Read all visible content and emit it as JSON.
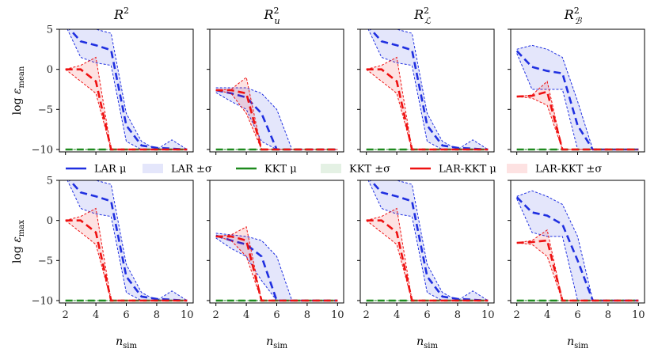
{
  "figure": {
    "legend": [
      {
        "label": "LAR μ",
        "kind": "line",
        "color": "#1f2fe0"
      },
      {
        "label": "LAR ±σ",
        "kind": "band",
        "color": "#1f2fe0"
      },
      {
        "label": "KKT μ",
        "kind": "line",
        "color": "#1e8a1e"
      },
      {
        "label": "KKT ±σ",
        "kind": "band",
        "color": "#1e8a1e"
      },
      {
        "label": "LAR-KKT μ",
        "kind": "line",
        "color": "#ee1111"
      },
      {
        "label": "LAR-KKT ±σ",
        "kind": "band",
        "color": "#ee1111"
      }
    ],
    "column_titles": [
      "R²",
      "R²_u",
      "R²_ℒ",
      "R²_ℬ"
    ],
    "row_ylabels": [
      "log ε_mean",
      "log ε_max"
    ],
    "xlabel": "n_sim"
  },
  "chart_data": {
    "type": "line",
    "layout": "2x4 grid of subplots sharing x and y axes",
    "x": [
      2,
      3,
      4,
      5,
      6,
      7,
      8,
      9,
      10
    ],
    "xticks": [
      2,
      4,
      6,
      8,
      10
    ],
    "yticks": [
      5,
      0,
      -5,
      -10
    ],
    "ylim": [
      -10.3,
      5
    ],
    "colors": {
      "LAR": "#1f2fe0",
      "KKT": "#1e8a1e",
      "LAR-KKT": "#ee1111"
    },
    "panels": [
      {
        "row": 0,
        "col": 0,
        "series": {
          "LAR": {
            "mean": [
              5.6,
              3.5,
              3.0,
              2.4,
              -7.0,
              -9.5,
              -9.8,
              -9.9,
              -10.0
            ],
            "upper": [
              5.5,
              5.2,
              5.0,
              4.5,
              -5.5,
              -9.0,
              -10.0,
              -8.8,
              -10.0
            ],
            "lower": [
              5.5,
              1.5,
              0.8,
              0.5,
              -9.0,
              -10.0,
              -10.0,
              -10.0,
              -10.0
            ]
          },
          "KKT": {
            "mean": [
              -10,
              -10,
              -10,
              -10,
              -10,
              -10,
              -10,
              -10,
              -10
            ],
            "upper": [
              -10,
              -10,
              -10,
              -10,
              -10,
              -10,
              -10,
              -10,
              -10
            ],
            "lower": [
              -10,
              -10,
              -10,
              -10,
              -10,
              -10,
              -10,
              -10,
              -10
            ]
          },
          "LAR-KKT": {
            "mean": [
              0.0,
              0.0,
              -1.5,
              -10.0,
              -10.0,
              -10.0,
              -10.0,
              -10.0,
              -10.0
            ],
            "upper": [
              0.0,
              0.5,
              1.5,
              -10.0,
              -10.0,
              -10.0,
              -10.0,
              -10.0,
              -10.0
            ],
            "lower": [
              0.0,
              -1.5,
              -3.0,
              -10.0,
              -10.0,
              -10.0,
              -10.0,
              -10.0,
              -10.0
            ]
          }
        }
      },
      {
        "row": 0,
        "col": 1,
        "series": {
          "LAR": {
            "mean": [
              -2.6,
              -3.0,
              -3.5,
              -5.5,
              -10.0,
              -10.0,
              -10.0,
              -10.0,
              -10.0
            ],
            "upper": [
              -2.3,
              -2.3,
              -2.3,
              -3.0,
              -5.0,
              -10.0,
              -10.0,
              -10.0,
              -10.0
            ],
            "lower": [
              -2.9,
              -4.0,
              -5.0,
              -9.0,
              -10.0,
              -10.0,
              -10.0,
              -10.0,
              -10.0
            ]
          },
          "KKT": {
            "mean": [
              -10,
              -10,
              -10,
              -10,
              -10,
              -10,
              -10,
              -10,
              -10
            ],
            "upper": [
              -10,
              -10,
              -10,
              -10,
              -10,
              -10,
              -10,
              -10,
              -10
            ],
            "lower": [
              -10,
              -10,
              -10,
              -10,
              -10,
              -10,
              -10,
              -10,
              -10
            ]
          },
          "LAR-KKT": {
            "mean": [
              -2.6,
              -2.6,
              -3.0,
              -10.0,
              -10.0,
              -10.0,
              -10.0,
              -10.0,
              -10.0
            ],
            "upper": [
              -2.6,
              -2.5,
              -1.0,
              -10.0,
              -10.0,
              -10.0,
              -10.0,
              -10.0,
              -10.0
            ],
            "lower": [
              -2.6,
              -3.0,
              -5.5,
              -10.0,
              -10.0,
              -10.0,
              -10.0,
              -10.0,
              -10.0
            ]
          }
        }
      },
      {
        "row": 0,
        "col": 2,
        "series": {
          "LAR": {
            "mean": [
              5.6,
              3.5,
              3.0,
              2.4,
              -7.0,
              -9.5,
              -9.8,
              -9.9,
              -10.0
            ],
            "upper": [
              5.5,
              5.2,
              5.0,
              4.5,
              -5.5,
              -9.0,
              -10.0,
              -8.8,
              -10.0
            ],
            "lower": [
              5.5,
              1.5,
              0.8,
              0.5,
              -9.0,
              -10.0,
              -10.0,
              -10.0,
              -10.0
            ]
          },
          "KKT": {
            "mean": [
              -10,
              -10,
              -10,
              -10,
              -10,
              -10,
              -10,
              -10,
              -10
            ],
            "upper": [
              -10,
              -10,
              -10,
              -10,
              -10,
              -10,
              -10,
              -10,
              -10
            ],
            "lower": [
              -10,
              -10,
              -10,
              -10,
              -10,
              -10,
              -10,
              -10,
              -10
            ]
          },
          "LAR-KKT": {
            "mean": [
              0.0,
              0.0,
              -1.5,
              -10.0,
              -10.0,
              -10.0,
              -10.0,
              -10.0,
              -10.0
            ],
            "upper": [
              0.0,
              0.5,
              1.5,
              -10.0,
              -10.0,
              -10.0,
              -10.0,
              -10.0,
              -10.0
            ],
            "lower": [
              0.0,
              -1.5,
              -3.0,
              -10.0,
              -10.0,
              -10.0,
              -10.0,
              -10.0,
              -10.0
            ]
          }
        }
      },
      {
        "row": 0,
        "col": 3,
        "series": {
          "LAR": {
            "mean": [
              2.3,
              0.3,
              -0.2,
              -0.5,
              -7.0,
              -10.0,
              -10.0,
              -10.0,
              -10.0
            ],
            "upper": [
              2.5,
              3.0,
              2.5,
              1.5,
              -4.0,
              -10.0,
              -10.0,
              -10.0,
              -10.0
            ],
            "lower": [
              2.0,
              -2.5,
              -2.5,
              -2.5,
              -10.0,
              -10.0,
              -10.0,
              -10.0,
              -10.0
            ]
          },
          "KKT": {
            "mean": [
              -10,
              -10,
              -10,
              -10,
              -10,
              -10,
              -10,
              -10,
              -10
            ],
            "upper": [
              -10,
              -10,
              -10,
              -10,
              -10,
              -10,
              -10,
              -10,
              -10
            ],
            "lower": [
              -10,
              -10,
              -10,
              -10,
              -10,
              -10,
              -10,
              -10,
              -10
            ]
          },
          "LAR-KKT": {
            "mean": [
              -3.4,
              -3.3,
              -2.8,
              -10.0,
              -10.0,
              -10.0,
              -10.0,
              -10.0,
              -10.0
            ],
            "upper": [
              -3.4,
              -3.2,
              -1.5,
              -10.0,
              -10.0,
              -10.0,
              -10.0,
              -10.0,
              -10.0
            ],
            "lower": [
              -3.4,
              -3.6,
              -4.5,
              -10.0,
              -10.0,
              -10.0,
              -10.0,
              -10.0,
              -10.0
            ]
          }
        }
      },
      {
        "row": 1,
        "col": 0,
        "series": {
          "LAR": {
            "mean": [
              5.6,
              3.5,
              3.0,
              2.4,
              -7.0,
              -9.5,
              -9.8,
              -9.9,
              -10.0
            ],
            "upper": [
              5.5,
              5.2,
              5.0,
              4.5,
              -5.5,
              -9.0,
              -10.0,
              -8.8,
              -10.0
            ],
            "lower": [
              5.5,
              1.5,
              0.8,
              0.5,
              -9.0,
              -10.0,
              -10.0,
              -10.0,
              -10.0
            ]
          },
          "KKT": {
            "mean": [
              -10,
              -10,
              -10,
              -10,
              -10,
              -10,
              -10,
              -10,
              -10
            ],
            "upper": [
              -10,
              -10,
              -10,
              -10,
              -10,
              -10,
              -10,
              -10,
              -10
            ],
            "lower": [
              -10,
              -10,
              -10,
              -10,
              -10,
              -10,
              -10,
              -10,
              -10
            ]
          },
          "LAR-KKT": {
            "mean": [
              0.0,
              0.0,
              -1.5,
              -10.0,
              -10.0,
              -10.0,
              -10.0,
              -10.0,
              -10.0
            ],
            "upper": [
              0.0,
              0.5,
              1.5,
              -10.0,
              -10.0,
              -10.0,
              -10.0,
              -10.0,
              -10.0
            ],
            "lower": [
              0.0,
              -1.5,
              -3.0,
              -10.0,
              -10.0,
              -10.0,
              -10.0,
              -10.0,
              -10.0
            ]
          }
        }
      },
      {
        "row": 1,
        "col": 1,
        "series": {
          "LAR": {
            "mean": [
              -1.9,
              -2.5,
              -3.0,
              -4.5,
              -10.0,
              -10.0,
              -10.0,
              -10.0,
              -10.0
            ],
            "upper": [
              -1.6,
              -1.8,
              -2.0,
              -2.5,
              -4.5,
              -10.0,
              -10.0,
              -10.0,
              -10.0
            ],
            "lower": [
              -2.2,
              -3.5,
              -4.5,
              -7.5,
              -10.0,
              -10.0,
              -10.0,
              -10.0,
              -10.0
            ]
          },
          "KKT": {
            "mean": [
              -10,
              -10,
              -10,
              -10,
              -10,
              -10,
              -10,
              -10,
              -10
            ],
            "upper": [
              -10,
              -10,
              -10,
              -10,
              -10,
              -10,
              -10,
              -10,
              -10
            ],
            "lower": [
              -10,
              -10,
              -10,
              -10,
              -10,
              -10,
              -10,
              -10,
              -10
            ]
          },
          "LAR-KKT": {
            "mean": [
              -2.0,
              -2.0,
              -2.5,
              -10.0,
              -10.0,
              -10.0,
              -10.0,
              -10.0,
              -10.0
            ],
            "upper": [
              -2.0,
              -1.8,
              -0.8,
              -10.0,
              -10.0,
              -10.0,
              -10.0,
              -10.0,
              -10.0
            ],
            "lower": [
              -2.0,
              -2.5,
              -4.5,
              -10.0,
              -10.0,
              -10.0,
              -10.0,
              -10.0,
              -10.0
            ]
          }
        }
      },
      {
        "row": 1,
        "col": 2,
        "series": {
          "LAR": {
            "mean": [
              5.6,
              3.5,
              3.0,
              2.4,
              -7.0,
              -9.5,
              -9.8,
              -9.9,
              -10.0
            ],
            "upper": [
              5.5,
              5.2,
              5.0,
              4.5,
              -5.5,
              -9.0,
              -10.0,
              -8.8,
              -10.0
            ],
            "lower": [
              5.5,
              1.5,
              0.8,
              0.5,
              -9.0,
              -10.0,
              -10.0,
              -10.0,
              -10.0
            ]
          },
          "KKT": {
            "mean": [
              -10,
              -10,
              -10,
              -10,
              -10,
              -10,
              -10,
              -10,
              -10
            ],
            "upper": [
              -10,
              -10,
              -10,
              -10,
              -10,
              -10,
              -10,
              -10,
              -10
            ],
            "lower": [
              -10,
              -10,
              -10,
              -10,
              -10,
              -10,
              -10,
              -10,
              -10
            ]
          },
          "LAR-KKT": {
            "mean": [
              0.0,
              0.0,
              -1.5,
              -10.0,
              -10.0,
              -10.0,
              -10.0,
              -10.0,
              -10.0
            ],
            "upper": [
              0.0,
              0.5,
              1.5,
              -10.0,
              -10.0,
              -10.0,
              -10.0,
              -10.0,
              -10.0
            ],
            "lower": [
              0.0,
              -1.5,
              -3.0,
              -10.0,
              -10.0,
              -10.0,
              -10.0,
              -10.0,
              -10.0
            ]
          }
        }
      },
      {
        "row": 1,
        "col": 3,
        "series": {
          "LAR": {
            "mean": [
              2.9,
              1.0,
              0.6,
              -0.5,
              -5.0,
              -10.0,
              -10.0,
              -10.0,
              -10.0
            ],
            "upper": [
              3.0,
              3.7,
              3.0,
              2.0,
              -2.0,
              -10.0,
              -10.0,
              -10.0,
              -10.0
            ],
            "lower": [
              2.7,
              -1.5,
              -2.0,
              -2.0,
              -10.0,
              -10.0,
              -10.0,
              -10.0,
              -10.0
            ]
          },
          "KKT": {
            "mean": [
              -10,
              -10,
              -10,
              -10,
              -10,
              -10,
              -10,
              -10,
              -10
            ],
            "upper": [
              -10,
              -10,
              -10,
              -10,
              -10,
              -10,
              -10,
              -10,
              -10
            ],
            "lower": [
              -10,
              -10,
              -10,
              -10,
              -10,
              -10,
              -10,
              -10,
              -10
            ]
          },
          "LAR-KKT": {
            "mean": [
              -2.8,
              -2.7,
              -2.5,
              -10.0,
              -10.0,
              -10.0,
              -10.0,
              -10.0,
              -10.0
            ],
            "upper": [
              -2.8,
              -2.5,
              -1.2,
              -10.0,
              -10.0,
              -10.0,
              -10.0,
              -10.0,
              -10.0
            ],
            "lower": [
              -2.8,
              -3.0,
              -4.5,
              -10.0,
              -10.0,
              -10.0,
              -10.0,
              -10.0,
              -10.0
            ]
          }
        }
      }
    ]
  }
}
